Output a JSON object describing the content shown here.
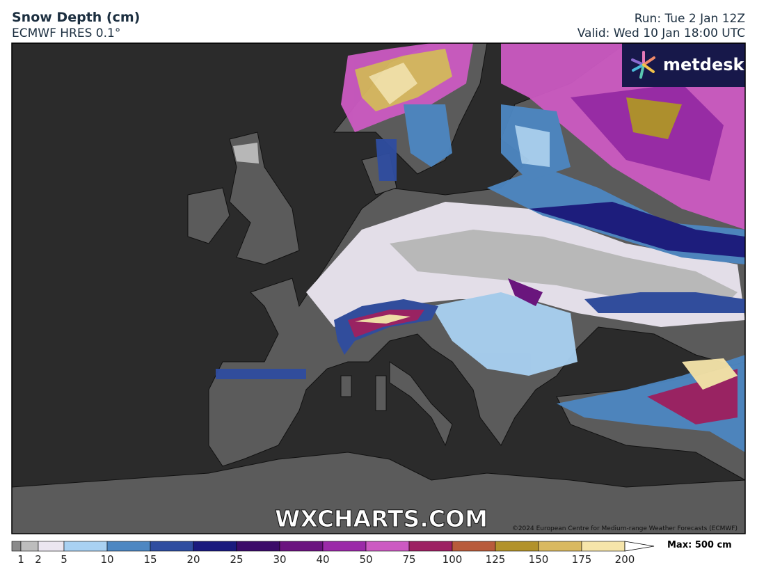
{
  "header": {
    "title": "Snow Depth (cm)",
    "model": "ECMWF HRES 0.1°",
    "run": "Run: Tue 2 Jan 12Z",
    "valid": "Valid: Wed 10 Jan 18:00 UTC"
  },
  "map": {
    "logo": "metdesk",
    "watermark": "WXCHARTS.COM",
    "credit": "©2024 European Centre for Medium-range Weather Forecasts (ECMWF)"
  },
  "legend": {
    "ticks": [
      1,
      2,
      5,
      10,
      15,
      20,
      25,
      30,
      40,
      50,
      75,
      100,
      125,
      150,
      175,
      200
    ],
    "colors": [
      "#8a8a8a",
      "#bdbdbd",
      "#ebe6f0",
      "#a9d1f2",
      "#4d87c2",
      "#2f4da0",
      "#1a1a7e",
      "#3b0b69",
      "#6b137f",
      "#9b2aa8",
      "#cc5ac2",
      "#9d2163",
      "#b85b3b",
      "#b2922b",
      "#d9b961",
      "#f6e5aa",
      "#ffffff"
    ],
    "max": "Max: 500 cm"
  }
}
